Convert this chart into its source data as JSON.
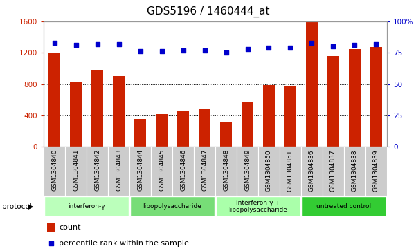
{
  "title": "GDS5196 / 1460444_at",
  "samples": [
    "GSM1304840",
    "GSM1304841",
    "GSM1304842",
    "GSM1304843",
    "GSM1304844",
    "GSM1304845",
    "GSM1304846",
    "GSM1304847",
    "GSM1304848",
    "GSM1304849",
    "GSM1304850",
    "GSM1304851",
    "GSM1304836",
    "GSM1304837",
    "GSM1304838",
    "GSM1304839"
  ],
  "counts": [
    1190,
    830,
    980,
    900,
    360,
    420,
    450,
    490,
    320,
    570,
    790,
    770,
    1590,
    1160,
    1250,
    1270
  ],
  "percentiles": [
    83,
    81,
    82,
    82,
    76,
    76,
    77,
    77,
    75,
    78,
    79,
    79,
    83,
    80,
    81,
    82
  ],
  "groups": [
    {
      "label": "interferon-γ",
      "start": 0,
      "end": 4,
      "color": "#bbffbb"
    },
    {
      "label": "lipopolysaccharide",
      "start": 4,
      "end": 8,
      "color": "#77dd77"
    },
    {
      "label": "interferon-γ +\nlipopolysaccharide",
      "start": 8,
      "end": 12,
      "color": "#aaffaa"
    },
    {
      "label": "untreated control",
      "start": 12,
      "end": 16,
      "color": "#33cc33"
    }
  ],
  "ylim_left": [
    0,
    1600
  ],
  "ylim_right": [
    0,
    100
  ],
  "yticks_left": [
    0,
    400,
    800,
    1200,
    1600
  ],
  "yticks_right": [
    0,
    25,
    50,
    75,
    100
  ],
  "bar_color": "#cc2200",
  "dot_color": "#0000cc",
  "bar_width": 0.55,
  "title_fontsize": 11,
  "left_tick_color": "#cc2200",
  "right_tick_color": "#0000cc",
  "xticklabel_bg": "#cccccc",
  "legend_square_size": 0.012
}
